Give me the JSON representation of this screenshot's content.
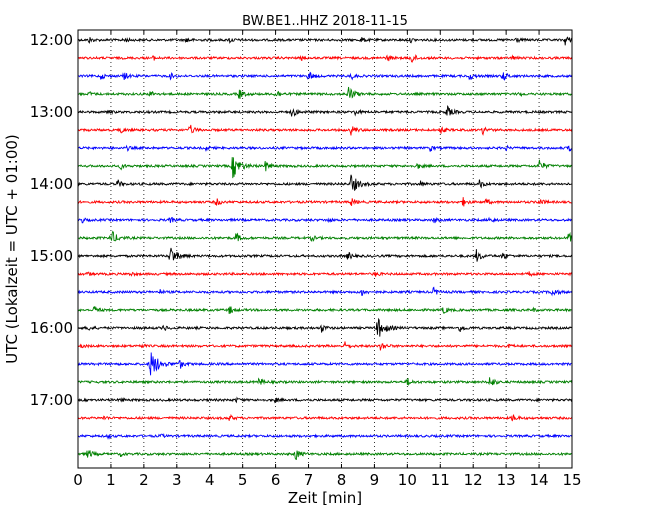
{
  "chart_data": {
    "type": "line",
    "title": "BW.BE1..HHZ 2018-11-15",
    "xlabel": "Zeit  [min]",
    "ylabel": "UTC (Lokalzeit = UTC + 01:00)",
    "xlim": [
      0,
      15
    ],
    "x_ticks": [
      "0",
      "1",
      "2",
      "3",
      "4",
      "5",
      "6",
      "7",
      "8",
      "9",
      "10",
      "11",
      "12",
      "13",
      "14",
      "15"
    ],
    "y_tick_labels": [
      "12:00",
      "13:00",
      "14:00",
      "15:00",
      "16:00",
      "17:00"
    ],
    "trace_interval_min": 15,
    "trace_colors": [
      "#000000",
      "#ff0000",
      "#0000ff",
      "#008000"
    ],
    "grid": "vertical dotted",
    "series": [
      {
        "start": "12:00",
        "events": [
          [
            0.35,
            3
          ],
          [
            1.4,
            3
          ],
          [
            3.3,
            3
          ],
          [
            4.6,
            3
          ],
          [
            8.6,
            3
          ],
          [
            10.1,
            2
          ],
          [
            13.3,
            3
          ],
          [
            14.8,
            5
          ]
        ]
      },
      {
        "start": "12:15",
        "events": [
          [
            2.3,
            2
          ],
          [
            6.8,
            2
          ],
          [
            9.4,
            3
          ],
          [
            10.1,
            6
          ],
          [
            13.2,
            2
          ]
        ]
      },
      {
        "start": "12:30",
        "events": [
          [
            0.7,
            3
          ],
          [
            1.4,
            4
          ],
          [
            2.8,
            3
          ],
          [
            7.0,
            5
          ],
          [
            8.3,
            3
          ],
          [
            11.9,
            4
          ],
          [
            12.9,
            5
          ]
        ]
      },
      {
        "start": "12:45",
        "events": [
          [
            0.35,
            2
          ],
          [
            2.2,
            3
          ],
          [
            4.9,
            5
          ],
          [
            6.0,
            5
          ],
          [
            8.2,
            8
          ],
          [
            13.4,
            2
          ]
        ]
      },
      {
        "start": "13:00",
        "events": [
          [
            0.9,
            2
          ],
          [
            6.5,
            5
          ],
          [
            8.4,
            3
          ],
          [
            11.2,
            6
          ]
        ]
      },
      {
        "start": "13:15",
        "events": [
          [
            1.3,
            3
          ],
          [
            3.4,
            5
          ],
          [
            8.3,
            5
          ],
          [
            11.0,
            4
          ],
          [
            12.3,
            4
          ]
        ]
      },
      {
        "start": "13:30",
        "events": [
          [
            1.5,
            2
          ],
          [
            3.9,
            2
          ],
          [
            10.7,
            3
          ],
          [
            13.0,
            2
          ],
          [
            14.9,
            3
          ]
        ]
      },
      {
        "start": "13:45",
        "events": [
          [
            1.3,
            3
          ],
          [
            4.7,
            12
          ],
          [
            5.7,
            5
          ],
          [
            10.3,
            3
          ],
          [
            14.0,
            6
          ]
        ]
      },
      {
        "start": "14:00",
        "events": [
          [
            1.2,
            4
          ],
          [
            8.3,
            10
          ],
          [
            10.4,
            3
          ],
          [
            12.2,
            4
          ]
        ]
      },
      {
        "start": "14:15",
        "events": [
          [
            4.2,
            4
          ],
          [
            8.3,
            4
          ],
          [
            11.7,
            4
          ],
          [
            12.4,
            3
          ],
          [
            14.0,
            4
          ]
        ]
      },
      {
        "start": "14:30",
        "events": [
          [
            0.1,
            3
          ],
          [
            2.8,
            3
          ],
          [
            7.6,
            2
          ],
          [
            10.8,
            3
          ],
          [
            12.5,
            3
          ]
        ]
      },
      {
        "start": "14:45",
        "events": [
          [
            1.0,
            8
          ],
          [
            4.8,
            5
          ],
          [
            7.1,
            3
          ],
          [
            14.9,
            5
          ]
        ]
      },
      {
        "start": "15:00",
        "events": [
          [
            2.8,
            10
          ],
          [
            8.2,
            4
          ],
          [
            12.1,
            6
          ],
          [
            12.9,
            4
          ]
        ]
      },
      {
        "start": "15:15",
        "events": [
          [
            0.3,
            2
          ],
          [
            1.6,
            2
          ],
          [
            9.0,
            3
          ],
          [
            13.7,
            2
          ]
        ]
      },
      {
        "start": "15:30",
        "events": [
          [
            2.5,
            2
          ],
          [
            8.6,
            4
          ],
          [
            10.8,
            4
          ],
          [
            14.4,
            5
          ]
        ]
      },
      {
        "start": "15:45",
        "events": [
          [
            0.5,
            4
          ],
          [
            4.6,
            4
          ],
          [
            11.1,
            4
          ],
          [
            13.8,
            2
          ]
        ]
      },
      {
        "start": "16:00",
        "events": [
          [
            0.3,
            3
          ],
          [
            2.6,
            3
          ],
          [
            7.4,
            4
          ],
          [
            9.1,
            11
          ],
          [
            11.6,
            4
          ]
        ]
      },
      {
        "start": "16:15",
        "events": [
          [
            0.1,
            2
          ],
          [
            1.9,
            2
          ],
          [
            8.1,
            4
          ],
          [
            9.2,
            5
          ],
          [
            13.1,
            2
          ]
        ]
      },
      {
        "start": "16:30",
        "events": [
          [
            2.2,
            14
          ],
          [
            3.1,
            4
          ]
        ]
      },
      {
        "start": "16:45",
        "events": [
          [
            5.5,
            4
          ],
          [
            10.0,
            4
          ],
          [
            12.5,
            6
          ]
        ]
      },
      {
        "start": "17:00",
        "events": [
          [
            1.3,
            2
          ],
          [
            4.8,
            2
          ],
          [
            6.0,
            2
          ]
        ]
      },
      {
        "start": "17:15",
        "events": [
          [
            0.8,
            2
          ],
          [
            4.6,
            3
          ],
          [
            13.2,
            4
          ]
        ]
      },
      {
        "start": "17:30",
        "events": [
          [
            0.9,
            2
          ],
          [
            2.5,
            2
          ]
        ]
      },
      {
        "start": "17:45",
        "events": [
          [
            0.3,
            5
          ],
          [
            1.3,
            2
          ],
          [
            6.6,
            6
          ]
        ]
      }
    ]
  }
}
